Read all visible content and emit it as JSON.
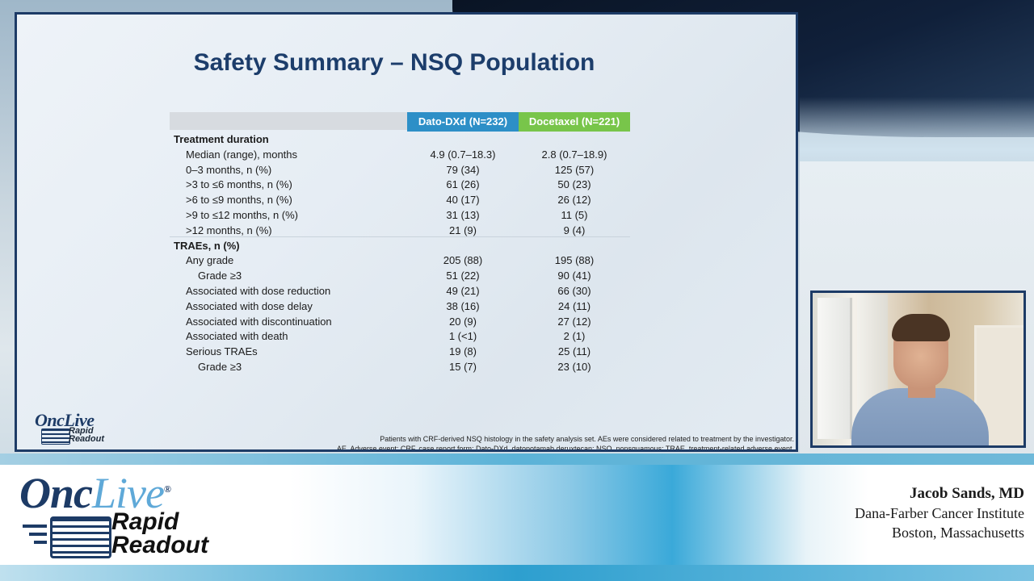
{
  "slide": {
    "title": "Safety Summary – NSQ Population",
    "columns": [
      "Dato-DXd (N=232)",
      "Docetaxel (N=221)"
    ],
    "rows": [
      {
        "label": "Treatment duration",
        "section": true,
        "v1": "",
        "v2": ""
      },
      {
        "label": "Median (range), months",
        "indent": 1,
        "v1": "4.9 (0.7–18.3)",
        "v2": "2.8 (0.7–18.9)"
      },
      {
        "label": "0–3 months, n (%)",
        "indent": 1,
        "v1": "79 (34)",
        "v2": "125 (57)"
      },
      {
        "label": ">3 to ≤6 months, n (%)",
        "indent": 1,
        "v1": "61 (26)",
        "v2": "50 (23)"
      },
      {
        "label": ">6 to ≤9 months, n (%)",
        "indent": 1,
        "v1": "40 (17)",
        "v2": "26 (12)"
      },
      {
        "label": ">9 to ≤12 months, n (%)",
        "indent": 1,
        "v1": "31 (13)",
        "v2": "11 (5)"
      },
      {
        "label": ">12 months, n (%)",
        "indent": 1,
        "v1": "21 (9)",
        "v2": "9 (4)"
      },
      {
        "label": "TRAEs, n (%)",
        "section": true,
        "v1": "",
        "v2": ""
      },
      {
        "label": "Any grade",
        "indent": 1,
        "v1": "205 (88)",
        "v2": "195 (88)"
      },
      {
        "label": "Grade ≥3",
        "indent": 2,
        "v1": "51 (22)",
        "v2": "90 (41)"
      },
      {
        "label": "Associated with dose reduction",
        "indent": 1,
        "v1": "49 (21)",
        "v2": "66 (30)"
      },
      {
        "label": "Associated with dose delay",
        "indent": 1,
        "v1": "38 (16)",
        "v2": "24 (11)"
      },
      {
        "label": "Associated with discontinuation",
        "indent": 1,
        "v1": "20 (9)",
        "v2": "27 (12)"
      },
      {
        "label": "Associated with death",
        "indent": 1,
        "v1": "1 (<1)",
        "v2": "2 (1)"
      },
      {
        "label": "Serious TRAEs",
        "indent": 1,
        "v1": "19 (8)",
        "v2": "25 (11)"
      },
      {
        "label": "Grade ≥3",
        "indent": 2,
        "v1": "15 (7)",
        "v2": "23 (10)"
      }
    ],
    "footnote": "Patients with CRF-derived NSQ histology in the safety analysis set. AEs were considered related to treatment by the investigator.",
    "footnote2": "AE, Adverse event; CRF, case report form; Dato-DXd, datopotamab deruxtecan; NSQ, nonsquamous; TRAE, treatment-related adverse event.",
    "logo_top": "OncLive",
    "logo_bottom": "Rapid Readout"
  },
  "lower_third": {
    "brand_onc": "Onc",
    "brand_live": "Live",
    "brand_registered": "®",
    "brand_rapid": "Rapid",
    "brand_readout": "Readout",
    "speaker_name": "Jacob Sands, MD",
    "speaker_institution": "Dana-Farber Cancer Institute",
    "speaker_location": "Boston, Massachusetts"
  }
}
